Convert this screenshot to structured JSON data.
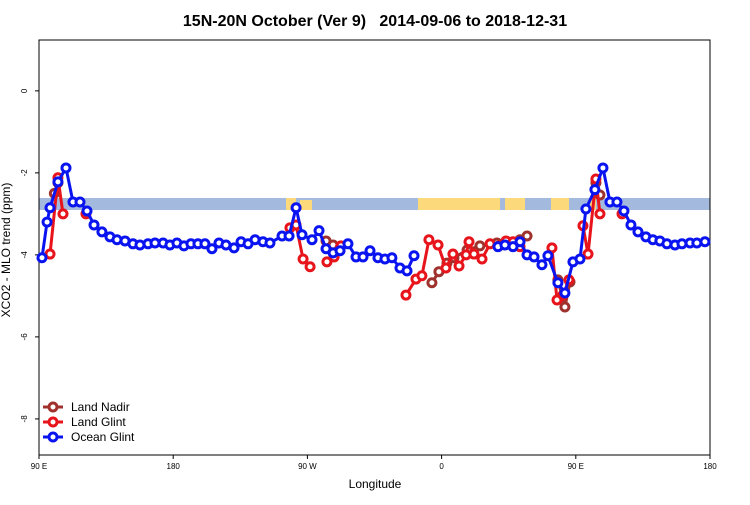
{
  "chart_data": {
    "type": "line",
    "title": "15N-20N October (Ver 9)   2014-09-06 to 2018-12-31",
    "xlabel": "Longitude",
    "ylabel": "XCO2 - MLO trend (ppm)",
    "xlim": [
      90,
      540
    ],
    "ylim": [
      -8.88,
      1.24
    ],
    "xticks": [
      {
        "value": 90,
        "label": "90 E"
      },
      180,
      {
        "value": 270,
        "label": "90 W"
      },
      {
        "value": 360,
        "label": "0"
      },
      {
        "value": 450,
        "label": "90 E"
      },
      {
        "value": 540,
        "label": "180"
      }
    ],
    "yticks": [
      0,
      -2,
      -4,
      -6,
      -8
    ],
    "legend": "bottom-left",
    "series": [
      {
        "name": "Land Nadir",
        "color": "#a0322d",
        "x": [
          100.3,
          102.7,
          null,
          282.5,
          287.2,
          291.9,
          null,
          353.5,
          358.2,
          363.6,
          368.3,
          377.1,
          385.7,
          397.1,
          407.9,
          412.6,
          417.3,
          null,
          438,
          442.7,
          446.1,
          null,
          463.5,
          466.2
        ],
        "values": [
          -2.5,
          -2.24,
          null,
          -3.66,
          -3.76,
          -3.83,
          null,
          -4.68,
          -4.41,
          -4.2,
          -4.07,
          -3.88,
          -3.78,
          -3.71,
          -3.73,
          -3.63,
          -3.54,
          null,
          -4.61,
          -5.27,
          -4.66,
          null,
          -2.24,
          -2.54
        ]
      },
      {
        "name": "Land Glint",
        "color": "#e8141b",
        "x": [
          97.4,
          102.7,
          106.1,
          null,
          121.5,
          null,
          258.3,
          262.4,
          267.1,
          271.8,
          null,
          283.1,
          287.9,
          292.5,
          null,
          336.1,
          342.8,
          346.8,
          351.5,
          357.6,
          362.9,
          367.6,
          371.7,
          376.4,
          378.4,
          381.7,
          387.1,
          392.5,
          398.5,
          403.2,
          407.9,
          412.6,
          null,
          434,
          437.4,
          441.4,
          445.4,
          null,
          454.8,
          458.2,
          463.5,
          466.2,
          null,
          481
        ],
        "values": [
          -3.98,
          -2.12,
          -3.0,
          null,
          -3.0,
          null,
          -3.34,
          -3.27,
          -4.1,
          -4.29,
          null,
          -4.17,
          -4.05,
          -3.78,
          null,
          -4.98,
          -4.59,
          -4.51,
          -3.63,
          -3.76,
          -4.32,
          -3.98,
          -4.27,
          -4.0,
          -3.68,
          -3.98,
          -4.1,
          -3.73,
          -3.78,
          -3.66,
          -3.68,
          -3.8,
          null,
          -3.83,
          -5.1,
          -4.98,
          -4.61,
          null,
          -3.29,
          -3.98,
          -2.15,
          -3.0,
          null,
          -3.0
        ]
      },
      {
        "name": "Ocean Glint",
        "color": "#0a14f0",
        "x": [
          92,
          95.4,
          97.4,
          102.7,
          108.1,
          112.8,
          117.5,
          122.2,
          126.9,
          132.2,
          137.6,
          142.3,
          147.7,
          153,
          157.7,
          163.1,
          167.8,
          173.2,
          177.8,
          182.5,
          187.2,
          191.9,
          196.6,
          201.3,
          206,
          210.7,
          215.4,
          220.8,
          225.5,
          230.2,
          234.9,
          240.2,
          244.9,
          253,
          257.7,
          262.4,
          266.4,
          273.1,
          277.8,
          282.5,
          287.2,
          291.9,
          297.2,
          302.6,
          307.3,
          312,
          317.3,
          322,
          326.7,
          332.1,
          336.8,
          341.5,
          null,
          397.8,
          402.5,
          407.9,
          412.6,
          417.3,
          422,
          427.3,
          431.3,
          438,
          442.7,
          448.1,
          452.8,
          456.8,
          462.8,
          468.2,
          472.9,
          477.6,
          482.3,
          487,
          491.7,
          497,
          501.7,
          506.4,
          511.1,
          516.5,
          521.2,
          526.6,
          531.2,
          536.6
        ],
        "values": [
          -4.07,
          -3.2,
          -2.85,
          -2.22,
          -1.88,
          -2.71,
          -2.71,
          -2.93,
          -3.27,
          -3.44,
          -3.56,
          -3.63,
          -3.66,
          -3.73,
          -3.76,
          -3.73,
          -3.71,
          -3.71,
          -3.76,
          -3.71,
          -3.78,
          -3.73,
          -3.73,
          -3.73,
          -3.85,
          -3.71,
          -3.76,
          -3.83,
          -3.68,
          -3.73,
          -3.63,
          -3.68,
          -3.71,
          -3.54,
          -3.54,
          -2.85,
          -3.51,
          -3.63,
          -3.41,
          -3.85,
          -3.95,
          -3.9,
          -3.73,
          -4.05,
          -4.05,
          -3.9,
          -4.07,
          -4.1,
          -4.07,
          -4.32,
          -4.39,
          -4.02,
          null,
          -3.8,
          -3.76,
          -3.8,
          -3.68,
          -4.0,
          -4.05,
          -4.24,
          -4.02,
          -4.68,
          -4.93,
          -4.17,
          -4.1,
          -2.88,
          -2.41,
          -1.88,
          -2.71,
          -2.71,
          -2.93,
          -3.27,
          -3.44,
          -3.56,
          -3.63,
          -3.66,
          -3.73,
          -3.76,
          -3.73,
          -3.71,
          -3.71,
          -3.68
        ]
      }
    ]
  }
}
